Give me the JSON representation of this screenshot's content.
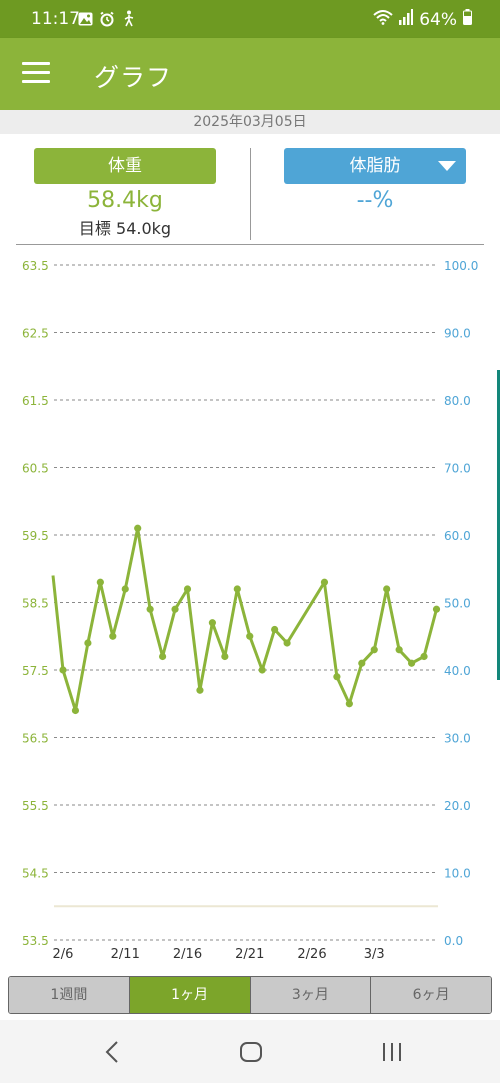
{
  "status_bar": {
    "time": "11:17",
    "battery": "64%",
    "icons": [
      "gallery-icon",
      "alarm-icon",
      "walk-icon",
      "wifi-icon",
      "signal-icon",
      "battery-icon"
    ]
  },
  "app_bar": {
    "title": "グラフ",
    "menu_icon": "hamburger-menu-icon"
  },
  "date": "2025年03月05日",
  "weight_card": {
    "label": "体重",
    "value": "58.4kg",
    "goal": "目標 54.0kg"
  },
  "fat_card": {
    "label": "体脂肪",
    "value": "--%",
    "icon": "dropdown-caret-icon"
  },
  "colors": {
    "green": "#8cb43a",
    "green_dark": "#6e9a22",
    "blue": "#4fa5d6",
    "grid": "#888888",
    "goal_line": "#ece7d3"
  },
  "chart_data": {
    "type": "line",
    "left_axis": {
      "ticks": [
        "63.5",
        "62.5",
        "61.5",
        "60.5",
        "59.5",
        "58.5",
        "57.5",
        "56.5",
        "55.5",
        "54.5",
        "53.5"
      ],
      "ylim": [
        53.5,
        63.5
      ]
    },
    "right_axis": {
      "ticks": [
        "100.0",
        "90.0",
        "80.0",
        "70.0",
        "60.0",
        "50.0",
        "40.0",
        "30.0",
        "20.0",
        "10.0",
        "0.0"
      ],
      "ylim": [
        0,
        100
      ]
    },
    "x_ticks": [
      {
        "label": "2/6",
        "day": 6
      },
      {
        "label": "2/11",
        "day": 11
      },
      {
        "label": "2/16",
        "day": 16
      },
      {
        "label": "2/21",
        "day": 21
      },
      {
        "label": "2/26",
        "day": 26
      },
      {
        "label": "3/3",
        "day": 31
      }
    ],
    "goal": 54.0,
    "series": [
      {
        "points": [
          {
            "day": 5.2,
            "y": 58.9,
            "marker": false
          },
          {
            "day": 6,
            "y": 57.5
          },
          {
            "day": 7,
            "y": 56.9
          },
          {
            "day": 8,
            "y": 57.9
          },
          {
            "day": 9,
            "y": 58.8
          },
          {
            "day": 10,
            "y": 58.0
          },
          {
            "day": 11,
            "y": 58.7
          },
          {
            "day": 12,
            "y": 59.6
          },
          {
            "day": 13,
            "y": 58.4
          },
          {
            "day": 14,
            "y": 57.7
          },
          {
            "day": 15,
            "y": 58.4
          },
          {
            "day": 16,
            "y": 58.7
          },
          {
            "day": 17,
            "y": 57.2
          },
          {
            "day": 18,
            "y": 58.2
          },
          {
            "day": 19,
            "y": 57.7
          },
          {
            "day": 20,
            "y": 58.7
          },
          {
            "day": 21,
            "y": 58.0
          },
          {
            "day": 22,
            "y": 57.5
          },
          {
            "day": 23,
            "y": 58.1
          },
          {
            "day": 24,
            "y": 57.9
          },
          {
            "day": 27,
            "y": 58.8
          },
          {
            "day": 28,
            "y": 57.4
          },
          {
            "day": 29,
            "y": 57.0
          },
          {
            "day": 30,
            "y": 57.6
          },
          {
            "day": 31,
            "y": 57.8
          },
          {
            "day": 32,
            "y": 58.7
          },
          {
            "day": 33,
            "y": 57.8
          },
          {
            "day": 34,
            "y": 57.6
          },
          {
            "day": 35,
            "y": 57.7
          },
          {
            "day": 36,
            "y": 58.4
          }
        ]
      }
    ]
  },
  "tabs": [
    {
      "label": "1週間",
      "active": false
    },
    {
      "label": "1ヶ月",
      "active": true
    },
    {
      "label": "3ヶ月",
      "active": false
    },
    {
      "label": "6ヶ月",
      "active": false
    }
  ],
  "nav": {
    "back_icon": "back-icon",
    "home_icon": "home-icon",
    "recents_icon": "recents-icon"
  }
}
